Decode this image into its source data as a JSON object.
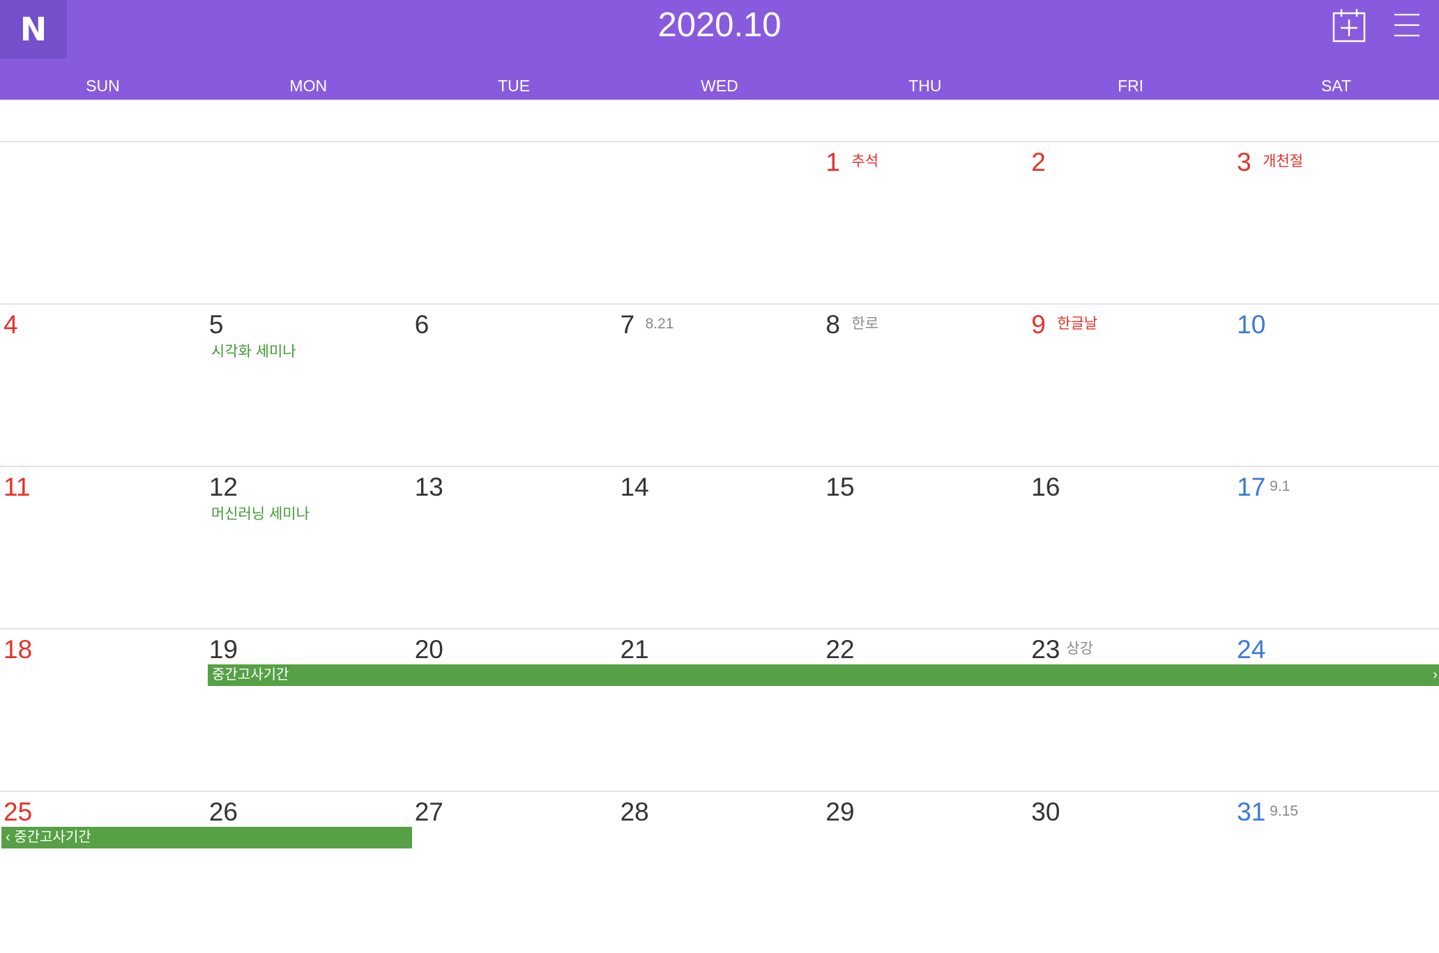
{
  "app": {
    "logo_letter": "N",
    "title": "2020.10",
    "accent_color": "#885bde"
  },
  "toolbar": {
    "add_icon": "calendar-add-icon",
    "menu_icon": "hamburger-menu-icon"
  },
  "weekdays": [
    "SUN",
    "MON",
    "TUE",
    "WED",
    "THU",
    "FRI",
    "SAT"
  ],
  "weeks": [
    [
      {
        "day": "",
        "sub": "",
        "event": ""
      },
      {
        "day": "",
        "sub": "",
        "event": ""
      },
      {
        "day": "",
        "sub": "",
        "event": ""
      },
      {
        "day": "",
        "sub": "",
        "event": ""
      },
      {
        "day": "1",
        "sub": "추석",
        "event": ""
      },
      {
        "day": "2",
        "sub": "",
        "event": ""
      },
      {
        "day": "3",
        "sub": "개천절",
        "event": ""
      }
    ],
    [
      {
        "day": "4",
        "sub": "",
        "event": ""
      },
      {
        "day": "5",
        "sub": "",
        "event": "시각화 세미나"
      },
      {
        "day": "6",
        "sub": "",
        "event": ""
      },
      {
        "day": "7",
        "sub": "8.21",
        "event": ""
      },
      {
        "day": "8",
        "sub": "한로",
        "event": ""
      },
      {
        "day": "9",
        "sub": "한글날",
        "event": ""
      },
      {
        "day": "10",
        "sub": "",
        "event": ""
      }
    ],
    [
      {
        "day": "11",
        "sub": "",
        "event": ""
      },
      {
        "day": "12",
        "sub": "",
        "event": "머신러닝 세미나"
      },
      {
        "day": "13",
        "sub": "",
        "event": ""
      },
      {
        "day": "14",
        "sub": "",
        "event": ""
      },
      {
        "day": "15",
        "sub": "",
        "event": ""
      },
      {
        "day": "16",
        "sub": "",
        "event": ""
      },
      {
        "day": "17",
        "sub": "9.1",
        "event": ""
      }
    ],
    [
      {
        "day": "18",
        "sub": "",
        "event": ""
      },
      {
        "day": "19",
        "sub": "",
        "event": ""
      },
      {
        "day": "20",
        "sub": "",
        "event": ""
      },
      {
        "day": "21",
        "sub": "",
        "event": ""
      },
      {
        "day": "22",
        "sub": "",
        "event": ""
      },
      {
        "day": "23",
        "sub": "상강",
        "event": ""
      },
      {
        "day": "24",
        "sub": "",
        "event": ""
      }
    ],
    [
      {
        "day": "25",
        "sub": "",
        "event": ""
      },
      {
        "day": "26",
        "sub": "",
        "event": ""
      },
      {
        "day": "27",
        "sub": "",
        "event": ""
      },
      {
        "day": "28",
        "sub": "",
        "event": ""
      },
      {
        "day": "29",
        "sub": "",
        "event": ""
      },
      {
        "day": "30",
        "sub": "",
        "event": ""
      },
      {
        "day": "31",
        "sub": "9.15",
        "event": ""
      }
    ]
  ],
  "multi_day_events": {
    "midterm_week4": {
      "label": "중간고사기간",
      "arrow": "›"
    },
    "midterm_week5": {
      "label": "‹ 중간고사기간"
    }
  },
  "colors": {
    "holiday_red": "#e5302a",
    "saturday_blue": "#3a79d9",
    "event_green": "#3f9a32",
    "bar_green": "#56a046"
  }
}
